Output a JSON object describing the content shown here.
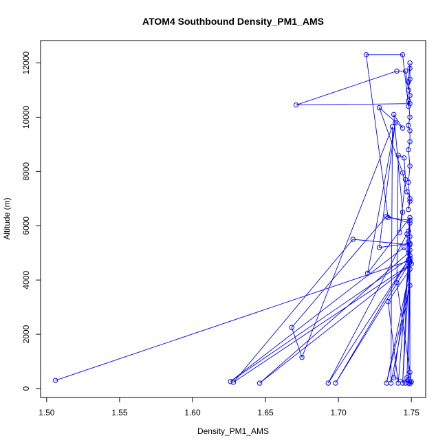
{
  "chart_data": {
    "type": "line",
    "title": "ATOM4 Southbound Density_PM1_AMS",
    "xlabel": "Density_PM1_AMS",
    "ylabel": "Altitude (m)",
    "xlim": [
      1.5,
      1.75
    ],
    "ylim": [
      0,
      12500
    ],
    "x_ticks": [
      "1.50",
      "1.55",
      "1.60",
      "1.65",
      "1.70",
      "1.75"
    ],
    "y_ticks": [
      "0",
      "2000",
      "4000",
      "6000",
      "8000",
      "10000",
      "12000"
    ],
    "grid": false,
    "marker": "open-circle",
    "series": [
      {
        "color": "#0000ff",
        "points": [
          [
            1.506,
            300
          ],
          [
            1.748,
            4700
          ],
          [
            1.749,
            5300
          ],
          [
            1.71,
            5500
          ],
          [
            1.628,
            230
          ],
          [
            1.75,
            4600
          ],
          [
            1.749,
            4900
          ],
          [
            1.745,
            5200
          ],
          [
            1.626,
            260
          ],
          [
            1.749,
            4800
          ],
          [
            1.748,
            5000
          ],
          [
            1.646,
            200
          ],
          [
            1.748,
            4500
          ],
          [
            1.747,
            5700
          ],
          [
            1.693,
            200
          ],
          [
            1.748,
            4750
          ],
          [
            1.698,
            200
          ],
          [
            1.749,
            4650
          ],
          [
            1.749,
            6100
          ],
          [
            1.733,
            6350
          ],
          [
            1.668,
            2250
          ],
          [
            1.675,
            1150
          ],
          [
            1.737,
            9650
          ],
          [
            1.736,
            200
          ],
          [
            1.749,
            3800
          ],
          [
            1.733,
            200
          ],
          [
            1.749,
            4400
          ],
          [
            1.734,
            3200
          ],
          [
            1.741,
            200
          ],
          [
            1.749,
            5350
          ],
          [
            1.728,
            5200
          ],
          [
            1.739,
            9800
          ],
          [
            1.72,
            4250
          ],
          [
            1.749,
            6300
          ],
          [
            1.744,
            200
          ],
          [
            1.749,
            4800
          ],
          [
            1.749,
            600
          ],
          [
            1.746,
            200
          ],
          [
            1.747,
            400
          ],
          [
            1.749,
            4700
          ],
          [
            1.748,
            200
          ],
          [
            1.749,
            250
          ],
          [
            1.738,
            400
          ],
          [
            1.749,
            4700
          ],
          [
            1.749,
            180
          ],
          [
            1.75,
            250
          ],
          [
            1.74,
            3900
          ],
          [
            1.741,
            8600
          ],
          [
            1.745,
            8500
          ],
          [
            1.746,
            7700
          ],
          [
            1.742,
            5750
          ],
          [
            1.744,
            6500
          ],
          [
            1.738,
            10100
          ],
          [
            1.744,
            9600
          ],
          [
            1.728,
            10350
          ],
          [
            1.744,
            7950
          ],
          [
            1.747,
            7250
          ],
          [
            1.749,
            7000
          ],
          [
            1.748,
            6600
          ],
          [
            1.749,
            6900
          ],
          [
            1.748,
            7600
          ],
          [
            1.749,
            8200
          ],
          [
            1.748,
            8800
          ],
          [
            1.749,
            9100
          ],
          [
            1.749,
            9500
          ],
          [
            1.748,
            9700
          ],
          [
            1.749,
            10000
          ],
          [
            1.748,
            10600
          ],
          [
            1.749,
            10500
          ],
          [
            1.671,
            10450
          ],
          [
            1.74,
            11700
          ],
          [
            1.746,
            11700
          ],
          [
            1.748,
            11000
          ],
          [
            1.749,
            11400
          ],
          [
            1.749,
            11800
          ],
          [
            1.749,
            12000
          ],
          [
            1.748,
            11300
          ],
          [
            1.749,
            10800
          ],
          [
            1.748,
            10400
          ],
          [
            1.744,
            12300
          ],
          [
            1.719,
            12300
          ],
          [
            1.734,
            6300
          ],
          [
            1.749,
            6200
          ],
          [
            1.748,
            5800
          ],
          [
            1.749,
            5600
          ],
          [
            1.748,
            5400
          ],
          [
            1.749,
            5100
          ]
        ]
      }
    ]
  }
}
